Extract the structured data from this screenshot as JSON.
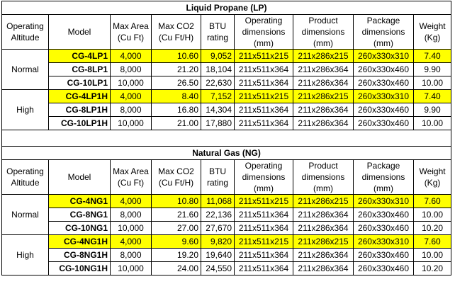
{
  "sections": [
    {
      "title": "Liquid Propane (LP)",
      "headers": [
        "Operating Altitude",
        "Model",
        "Max Area (Cu Ft)",
        "Max CO2 (Cu Ft/H)",
        "BTU rating",
        "Operating dimensions (mm)",
        "Product dimensions (mm)",
        "Package dimensions (mm)",
        "Weight (Kg)"
      ],
      "groups": [
        {
          "altitude": "Normal",
          "rows": [
            {
              "color": "#ffff00",
              "cells": [
                "CG-4LP1",
                "4,000",
                "10.60",
                "9,052",
                "211x511x215",
                "211x286x215",
                "260x330x310",
                "7.40"
              ]
            },
            {
              "cells": [
                "CG-8LP1",
                "8,000",
                "21.20",
                "18,104",
                "211x511x364",
                "211x286x364",
                "260x330x460",
                "9.90"
              ]
            },
            {
              "cells": [
                "CG-10LP1",
                "10,000",
                "26.50",
                "22,630",
                "211x511x364",
                "211x286x364",
                "260x330x460",
                "10.00"
              ]
            }
          ]
        },
        {
          "altitude": "High",
          "rows": [
            {
              "color": "#ffff00",
              "cells": [
                "CG-4LP1H",
                "4,000",
                "8.40",
                "7,152",
                "211x511x215",
                "211x286x215",
                "260x330x310",
                "7.40"
              ]
            },
            {
              "cells": [
                "CG-8LP1H",
                "8,000",
                "16.80",
                "14,304",
                "211x511x364",
                "211x286x364",
                "260x330x460",
                "9.90"
              ]
            },
            {
              "cells": [
                "CG-10LP1H",
                "10,000",
                "21.00",
                "17,880",
                "211x511x364",
                "211x286x364",
                "260x330x460",
                "10.00"
              ]
            }
          ]
        }
      ]
    },
    {
      "title": "Natural Gas (NG)",
      "headers": [
        "Operating Altitude",
        "Model",
        "Max Area (Cu Ft)",
        "Max CO2 (Cu Ft/H)",
        "BTU rating",
        "Operating dimensions (mm)",
        "Product dimensions (mm)",
        "Package dimensions (mm)",
        "Weight (Kg)"
      ],
      "groups": [
        {
          "altitude": "Normal",
          "rows": [
            {
              "color": "#ffff00",
              "cells": [
                "CG-4NG1",
                "4,000",
                "10.80",
                "11,068",
                "211x511x215",
                "211x286x215",
                "260x330x310",
                "7.60"
              ]
            },
            {
              "cells": [
                "CG-8NG1",
                "8,000",
                "21.60",
                "22,136",
                "211x511x364",
                "211x286x364",
                "260x330x460",
                "10.00"
              ]
            },
            {
              "cells": [
                "CG-10NG1",
                "10,000",
                "27.00",
                "27,670",
                "211x511x364",
                "211x286x364",
                "260x330x460",
                "10.20"
              ]
            }
          ]
        },
        {
          "altitude": "High",
          "rows": [
            {
              "color": "#ffff00",
              "cells": [
                "CG-4NG1H",
                "4,000",
                "9.60",
                "9,820",
                "211x511x215",
                "211x286x215",
                "260x330x310",
                "7.60"
              ]
            },
            {
              "cells": [
                "CG-8NG1H",
                "8,000",
                "19.20",
                "19,640",
                "211x511x364",
                "211x286x364",
                "260x330x460",
                "10.00"
              ]
            },
            {
              "cells": [
                "CG-10NG1H",
                "10,000",
                "24.00",
                "24,550",
                "211x511x364",
                "211x286x364",
                "260x330x460",
                "10.20"
              ]
            }
          ]
        }
      ]
    }
  ]
}
